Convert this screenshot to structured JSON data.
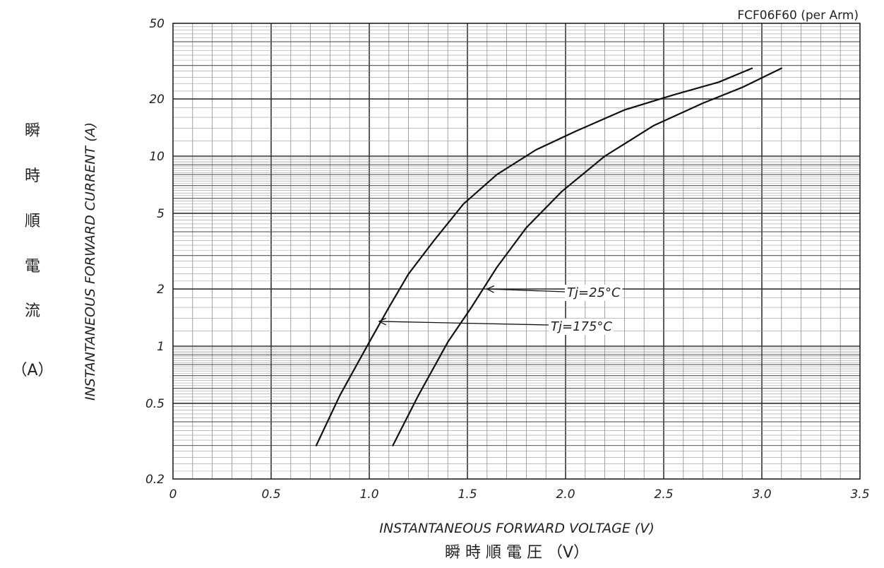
{
  "chart_data": {
    "type": "line",
    "title": "FCF06F60 (per Arm)",
    "xlabel": "INSTANTANEOUS FORWARD VOLTAGE (V)",
    "xlabel_jp": "瞬 時 順 電 圧 （V）",
    "ylabel": "INSTANTANEOUS FORWARD CURRENT (A)",
    "ylabel_jp": [
      "瞬",
      "時",
      "順",
      "電",
      "流",
      "（A）"
    ],
    "x_scale": "linear",
    "y_scale": "log",
    "xlim": [
      0,
      3.5
    ],
    "ylim": [
      0.2,
      50
    ],
    "x_ticks": [
      "0",
      "0.5",
      "1.0",
      "1.5",
      "2.0",
      "2.5",
      "3.0",
      "3.5"
    ],
    "y_ticks": [
      {
        "value": 50,
        "label": "50"
      },
      {
        "value": 20,
        "label": "20"
      },
      {
        "value": 10,
        "label": "10"
      },
      {
        "value": 5,
        "label": "5"
      },
      {
        "value": 2,
        "label": "2"
      },
      {
        "value": 1,
        "label": "1"
      },
      {
        "value": 0.5,
        "label": "0.5"
      },
      {
        "value": 0.2,
        "label": "0.2"
      }
    ],
    "grid": true,
    "series": [
      {
        "name": "Tj=175°C",
        "points": [
          [
            0.73,
            0.3
          ],
          [
            0.85,
            0.55
          ],
          [
            1.0,
            1.05
          ],
          [
            1.1,
            1.6
          ],
          [
            1.2,
            2.4
          ],
          [
            1.33,
            3.6
          ],
          [
            1.48,
            5.6
          ],
          [
            1.65,
            8.0
          ],
          [
            1.85,
            10.8
          ],
          [
            2.05,
            13.5
          ],
          [
            2.3,
            17.5
          ],
          [
            2.55,
            21.0
          ],
          [
            2.78,
            24.5
          ],
          [
            2.95,
            29.0
          ]
        ]
      },
      {
        "name": "Tj=25°C",
        "points": [
          [
            1.12,
            0.3
          ],
          [
            1.25,
            0.55
          ],
          [
            1.4,
            1.05
          ],
          [
            1.52,
            1.6
          ],
          [
            1.65,
            2.6
          ],
          [
            1.8,
            4.2
          ],
          [
            1.98,
            6.5
          ],
          [
            2.2,
            10.0
          ],
          [
            2.45,
            14.5
          ],
          [
            2.7,
            19.0
          ],
          [
            2.9,
            23.0
          ],
          [
            3.1,
            29.0
          ]
        ]
      }
    ],
    "annotations": [
      {
        "text": "Tj=25°C",
        "series": "Tj=25°C",
        "target": [
          1.6,
          2.0
        ]
      },
      {
        "text": "Tj=175°C",
        "series": "Tj=175°C",
        "target": [
          1.05,
          1.35
        ]
      }
    ]
  }
}
